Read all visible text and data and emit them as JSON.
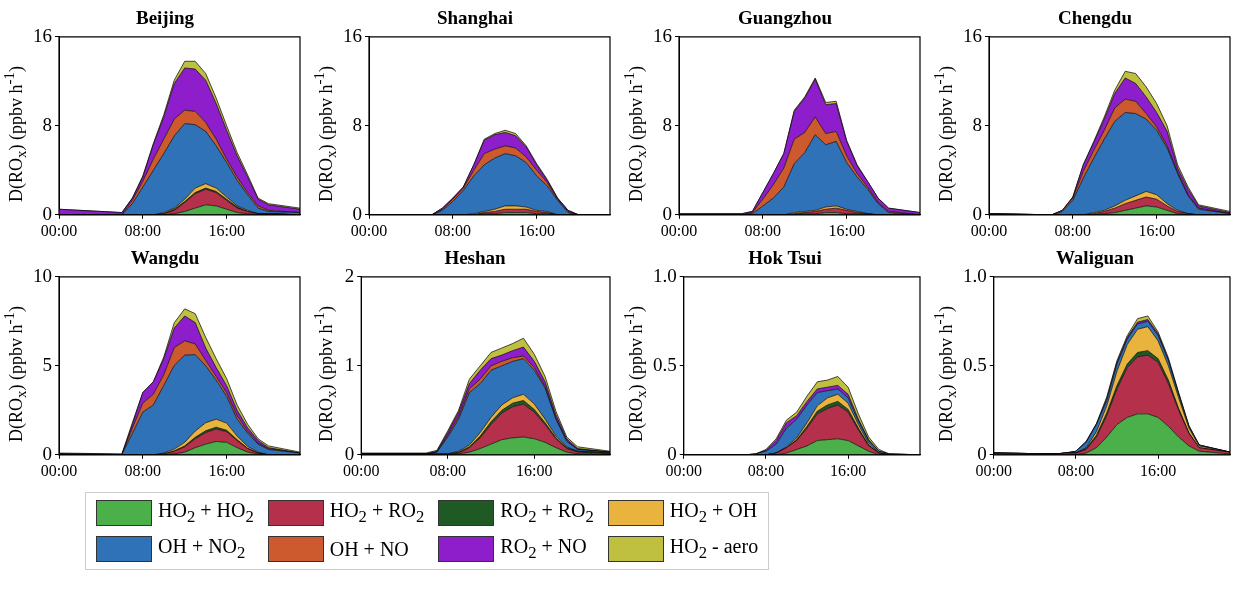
{
  "chart_data": [
    {
      "type": "area",
      "title": "Beijing",
      "ylabel": "D(RO$_{x}$) (ppbv h$^{-1}$)",
      "stacked": true,
      "legend": "bottom",
      "x": [
        0,
        6,
        7,
        8,
        9,
        10,
        11,
        12,
        13,
        14,
        15,
        16,
        17,
        18,
        19,
        20,
        23
      ],
      "xlim": [
        0,
        23
      ],
      "xticks": [
        {
          "value": 0,
          "label": "00:00"
        },
        {
          "value": 8,
          "label": "08:00"
        },
        {
          "value": 16,
          "label": "16:00"
        }
      ],
      "ylim": [
        0,
        16
      ],
      "yticks": [
        0,
        8,
        16
      ],
      "series": [
        {
          "name": "HO$_{2}$ + HO$_{2}$",
          "color": "#4cb04a",
          "values": [
            0,
            0,
            0,
            0,
            0,
            0,
            0.1,
            0.3,
            0.6,
            0.9,
            0.8,
            0.5,
            0.2,
            0.1,
            0,
            0,
            0
          ]
        },
        {
          "name": "HO$_{2}$ + RO$_{2}$",
          "color": "#b5304a",
          "values": [
            0,
            0,
            0,
            0,
            0,
            0.1,
            0.3,
            0.8,
            1.3,
            1.4,
            1.2,
            0.8,
            0.4,
            0.2,
            0.1,
            0.1,
            0
          ]
        },
        {
          "name": "RO$_{2}$ + RO$_{2}$",
          "color": "#1f5a25",
          "values": [
            0,
            0,
            0,
            0,
            0,
            0,
            0.1,
            0.1,
            0.1,
            0.1,
            0.1,
            0.1,
            0.1,
            0,
            0,
            0,
            0
          ]
        },
        {
          "name": "HO$_{2}$ + OH",
          "color": "#e8b43e",
          "values": [
            0,
            0,
            0,
            0,
            0,
            0.1,
            0.1,
            0.2,
            0.4,
            0.4,
            0.3,
            0.2,
            0.1,
            0.1,
            0,
            0,
            0
          ]
        },
        {
          "name": "OH + NO$_{2}$",
          "color": "#2f72b8",
          "values": [
            0,
            0,
            1,
            2.5,
            4,
            5.3,
            6.5,
            6.8,
            5.7,
            4.7,
            3.8,
            3.1,
            2.3,
            1.4,
            0.5,
            0.2,
            0.2
          ]
        },
        {
          "name": "OH + NO",
          "color": "#cc5a2e",
          "values": [
            0,
            0,
            0.3,
            0.5,
            1,
            1.3,
            1.5,
            1.2,
            1.2,
            0.8,
            0.6,
            0.3,
            0.3,
            0.2,
            0.2,
            0.1,
            0
          ]
        },
        {
          "name": "RO$_{2}$ + NO",
          "color": "#8e1ecc",
          "values": [
            0.5,
            0.2,
            0.2,
            0.4,
            1.3,
            2,
            3.2,
            3.8,
            3.8,
            3.8,
            3.2,
            2.6,
            1.9,
            1.4,
            0.6,
            0.5,
            0.3
          ]
        },
        {
          "name": "HO$_{2}$ - aero",
          "color": "#c0c040",
          "values": [
            0,
            0,
            0,
            0.1,
            0.1,
            0.2,
            0.3,
            0.6,
            0.7,
            0.6,
            0.5,
            0.4,
            0.3,
            0.2,
            0.1,
            0.1,
            0.1
          ]
        }
      ]
    },
    {
      "type": "area",
      "title": "Shanghai",
      "ylabel": "D(RO$_{x}$) (ppbv h$^{-1}$)",
      "stacked": true,
      "x": [
        0,
        6,
        7,
        8,
        9,
        10,
        11,
        12,
        13,
        14,
        15,
        16,
        17,
        18,
        19,
        20,
        23
      ],
      "xlim": [
        0,
        23
      ],
      "xticks": [
        {
          "value": 0,
          "label": "00:00"
        },
        {
          "value": 8,
          "label": "08:00"
        },
        {
          "value": 16,
          "label": "16:00"
        }
      ],
      "ylim": [
        0,
        16
      ],
      "yticks": [
        0,
        8,
        16
      ],
      "series": [
        {
          "color": "#4cb04a",
          "values": [
            0,
            0,
            0,
            0,
            0,
            0,
            0.1,
            0.1,
            0.2,
            0.2,
            0.2,
            0.1,
            0.1,
            0,
            0,
            0,
            0
          ]
        },
        {
          "color": "#b5304a",
          "values": [
            0,
            0,
            0,
            0,
            0,
            0,
            0.1,
            0.2,
            0.3,
            0.3,
            0.3,
            0.2,
            0.1,
            0,
            0,
            0,
            0
          ]
        },
        {
          "color": "#e8b43e",
          "values": [
            0,
            0,
            0,
            0,
            0,
            0.1,
            0.1,
            0.2,
            0.3,
            0.3,
            0.2,
            0.1,
            0.1,
            0,
            0,
            0,
            0
          ]
        },
        {
          "color": "#2f72b8",
          "values": [
            0,
            0,
            0.4,
            1.2,
            2.2,
            3.4,
            4.2,
            4.6,
            4.7,
            4.5,
            4,
            3.1,
            2.3,
            1.3,
            0.2,
            0,
            0
          ]
        },
        {
          "color": "#cc5a2e",
          "values": [
            0,
            0,
            0.1,
            0.2,
            0.2,
            0.5,
            1,
            0.8,
            0.7,
            0.7,
            0.5,
            0.5,
            0.3,
            0.1,
            0.1,
            0,
            0
          ]
        },
        {
          "color": "#8e1ecc",
          "values": [
            0,
            0,
            0.1,
            0.1,
            0.1,
            0.5,
            1.2,
            1.3,
            1.2,
            1.1,
            0.9,
            0.5,
            0.2,
            0.1,
            0.1,
            0,
            0
          ]
        },
        {
          "color": "#c0c040",
          "values": [
            0,
            0,
            0,
            0,
            0,
            0,
            0.1,
            0.1,
            0.2,
            0.2,
            0.1,
            0.1,
            0.1,
            0,
            0,
            0,
            0
          ]
        }
      ]
    },
    {
      "type": "area",
      "title": "Guangzhou",
      "ylabel": "D(RO$_{x}$) (ppbv h$^{-1}$)",
      "stacked": true,
      "x": [
        0,
        6,
        7,
        8,
        9,
        10,
        11,
        12,
        13,
        14,
        15,
        16,
        17,
        18,
        19,
        20,
        23
      ],
      "xlim": [
        0,
        23
      ],
      "xticks": [
        {
          "value": 0,
          "label": "00:00"
        },
        {
          "value": 8,
          "label": "08:00"
        },
        {
          "value": 16,
          "label": "16:00"
        }
      ],
      "ylim": [
        0,
        16
      ],
      "yticks": [
        0,
        8,
        16
      ],
      "series": [
        {
          "color": "#4cb04a",
          "values": [
            0,
            0,
            0,
            0,
            0,
            0,
            0,
            0.1,
            0.1,
            0.2,
            0.2,
            0.1,
            0.1,
            0,
            0,
            0,
            0
          ]
        },
        {
          "color": "#b5304a",
          "values": [
            0,
            0,
            0,
            0,
            0,
            0,
            0.1,
            0.1,
            0.2,
            0.3,
            0.4,
            0.3,
            0.1,
            0.1,
            0,
            0,
            0
          ]
        },
        {
          "color": "#e8b43e",
          "values": [
            0,
            0,
            0,
            0,
            0,
            0,
            0.1,
            0.1,
            0.1,
            0.2,
            0.2,
            0.1,
            0.1,
            0,
            0,
            0,
            0
          ]
        },
        {
          "color": "#2f72b8",
          "values": [
            0,
            0,
            0.1,
            0.8,
            1.5,
            2.5,
            4.4,
            5.3,
            6.8,
            5.6,
            5.8,
            4.2,
            3.1,
            2.2,
            1,
            0.2,
            0
          ]
        },
        {
          "color": "#cc5a2e",
          "values": [
            0,
            0,
            0.1,
            0.6,
            1.2,
            1.7,
            2.2,
            1.8,
            1.6,
            1,
            0.9,
            0.6,
            0.3,
            0.2,
            0.1,
            0.1,
            0
          ]
        },
        {
          "color": "#8e1ecc",
          "values": [
            0.1,
            0.1,
            0.1,
            0.6,
            1,
            1.3,
            2.5,
            3.1,
            3.4,
            2.6,
            2.5,
            1.3,
            0.7,
            0.5,
            0.4,
            0.3,
            0.2
          ]
        },
        {
          "color": "#c0c040",
          "values": [
            0,
            0,
            0,
            0,
            0,
            0,
            0.1,
            0.1,
            0.1,
            0.2,
            0.2,
            0.1,
            0.1,
            0,
            0,
            0,
            0
          ]
        }
      ]
    },
    {
      "type": "area",
      "title": "Chengdu",
      "ylabel": "D(RO$_{x}$) (ppbv h$^{-1}$)",
      "stacked": true,
      "x": [
        0,
        6,
        7,
        8,
        9,
        10,
        11,
        12,
        13,
        14,
        15,
        16,
        17,
        18,
        19,
        20,
        23
      ],
      "xlim": [
        0,
        23
      ],
      "xticks": [
        {
          "value": 0,
          "label": "00:00"
        },
        {
          "value": 8,
          "label": "08:00"
        },
        {
          "value": 16,
          "label": "16:00"
        }
      ],
      "ylim": [
        0,
        16
      ],
      "yticks": [
        0,
        8,
        16
      ],
      "series": [
        {
          "color": "#4cb04a",
          "values": [
            0,
            0,
            0,
            0,
            0,
            0,
            0.1,
            0.2,
            0.4,
            0.6,
            0.8,
            0.7,
            0.4,
            0.1,
            0,
            0,
            0
          ]
        },
        {
          "color": "#b5304a",
          "values": [
            0,
            0,
            0,
            0,
            0,
            0.1,
            0.2,
            0.4,
            0.6,
            0.7,
            0.8,
            0.7,
            0.4,
            0.2,
            0.1,
            0,
            0
          ]
        },
        {
          "color": "#e8b43e",
          "values": [
            0,
            0,
            0,
            0,
            0,
            0.1,
            0.1,
            0.2,
            0.3,
            0.4,
            0.5,
            0.4,
            0.2,
            0.1,
            0,
            0,
            0
          ]
        },
        {
          "color": "#2f72b8",
          "values": [
            0.1,
            0,
            0.3,
            1.3,
            3.3,
            4.9,
            6.4,
            7.6,
            7.9,
            7.4,
            6.5,
            5.8,
            5,
            3.3,
            1.6,
            0.5,
            0.1
          ]
        },
        {
          "color": "#cc5a2e",
          "values": [
            0,
            0,
            0.1,
            0.2,
            0.6,
            0.7,
            0.8,
            1.2,
            1.2,
            1.1,
            0.5,
            0.3,
            0.2,
            0.1,
            0.1,
            0.1,
            0
          ]
        },
        {
          "color": "#8e1ecc",
          "values": [
            0,
            0,
            0,
            0.1,
            0.6,
            0.7,
            1,
            1.3,
            1.9,
            1.6,
            1.5,
            1.3,
            1.3,
            0.4,
            0.5,
            0.2,
            0.1
          ]
        },
        {
          "color": "#c0c040",
          "values": [
            0,
            0,
            0,
            0,
            0,
            0.1,
            0.2,
            0.3,
            0.6,
            0.9,
            0.9,
            0.8,
            0.5,
            0.3,
            0.2,
            0.1,
            0.1
          ]
        }
      ]
    },
    {
      "type": "area",
      "title": "Wangdu",
      "ylabel": "D(RO$_{x}$) (ppbv h$^{-1}$)",
      "stacked": true,
      "x": [
        0,
        6,
        7,
        8,
        9,
        10,
        11,
        12,
        13,
        14,
        15,
        16,
        17,
        18,
        19,
        20,
        23
      ],
      "xlim": [
        0,
        23
      ],
      "xticks": [
        {
          "value": 0,
          "label": "00:00"
        },
        {
          "value": 8,
          "label": "08:00"
        },
        {
          "value": 16,
          "label": "16:00"
        }
      ],
      "ylim": [
        0,
        10
      ],
      "yticks": [
        0,
        5,
        10
      ],
      "series": [
        {
          "color": "#4cb04a",
          "values": [
            0,
            0,
            0,
            0,
            0,
            0,
            0.05,
            0.15,
            0.4,
            0.6,
            0.75,
            0.7,
            0.4,
            0.15,
            0.05,
            0,
            0
          ]
        },
        {
          "color": "#b5304a",
          "values": [
            0,
            0,
            0,
            0,
            0,
            0.05,
            0.15,
            0.3,
            0.5,
            0.65,
            0.7,
            0.6,
            0.4,
            0.2,
            0.05,
            0,
            0
          ]
        },
        {
          "color": "#1f5a25",
          "values": [
            0,
            0,
            0,
            0,
            0,
            0,
            0.02,
            0.05,
            0.08,
            0.1,
            0.1,
            0.08,
            0.05,
            0.02,
            0,
            0,
            0
          ]
        },
        {
          "color": "#e8b43e",
          "values": [
            0,
            0,
            0,
            0,
            0,
            0.05,
            0.1,
            0.2,
            0.35,
            0.45,
            0.45,
            0.4,
            0.2,
            0.1,
            0.05,
            0,
            0
          ]
        },
        {
          "color": "#2f72b8",
          "values": [
            0.05,
            0.02,
            1.2,
            2.4,
            2.8,
            3.8,
            4.7,
            4.9,
            4.3,
            3.2,
            2.2,
            1.5,
            0.95,
            0.75,
            0.45,
            0.3,
            0.1
          ]
        },
        {
          "color": "#cc5a2e",
          "values": [
            0,
            0,
            0.3,
            0.5,
            0.6,
            0.6,
            1,
            0.8,
            0.6,
            0.3,
            0.2,
            0.2,
            0.2,
            0.1,
            0.05,
            0.05,
            0
          ]
        },
        {
          "color": "#8e1ecc",
          "values": [
            0,
            0,
            0.2,
            0.6,
            0.7,
            0.9,
            1.1,
            1.4,
            1.2,
            0.7,
            0.5,
            0.4,
            0.3,
            0.2,
            0.15,
            0.05,
            0
          ]
        },
        {
          "color": "#c0c040",
          "values": [
            0.05,
            0.03,
            0.1,
            0,
            0,
            0.1,
            0.3,
            0.4,
            0.5,
            0.6,
            0.5,
            0.4,
            0.3,
            0.2,
            0.1,
            0.1,
            0.05
          ]
        }
      ]
    },
    {
      "type": "area",
      "title": "Heshan",
      "ylabel": "D(RO$_{x}$) (ppbv h$^{-1}$)",
      "stacked": true,
      "x": [
        0,
        6,
        7,
        8,
        9,
        10,
        11,
        12,
        13,
        14,
        15,
        16,
        17,
        18,
        19,
        20,
        23
      ],
      "xlim": [
        0,
        23
      ],
      "xticks": [
        {
          "value": 0,
          "label": "00:00"
        },
        {
          "value": 8,
          "label": "08:00"
        },
        {
          "value": 16,
          "label": "16:00"
        }
      ],
      "ylim": [
        0,
        2
      ],
      "yticks": [
        0,
        1,
        2
      ],
      "series": [
        {
          "color": "#4cb04a",
          "values": [
            0,
            0,
            0,
            0,
            0.01,
            0.03,
            0.07,
            0.12,
            0.17,
            0.19,
            0.2,
            0.18,
            0.14,
            0.08,
            0.03,
            0.01,
            0
          ]
        },
        {
          "color": "#b5304a",
          "values": [
            0,
            0,
            0,
            0,
            0.01,
            0.05,
            0.12,
            0.22,
            0.3,
            0.35,
            0.37,
            0.3,
            0.2,
            0.1,
            0.04,
            0.02,
            0.01
          ]
        },
        {
          "color": "#1f5a25",
          "values": [
            0.01,
            0.01,
            0.01,
            0.01,
            0.01,
            0.01,
            0.02,
            0.03,
            0.03,
            0.04,
            0.04,
            0.03,
            0.02,
            0.01,
            0.01,
            0.01,
            0.01
          ]
        },
        {
          "color": "#e8b43e",
          "values": [
            0,
            0,
            0,
            0,
            0.01,
            0.02,
            0.04,
            0.05,
            0.06,
            0.06,
            0.07,
            0.06,
            0.04,
            0.02,
            0.01,
            0,
            0
          ]
        },
        {
          "color": "#2f72b8",
          "values": [
            0,
            0,
            0.02,
            0.19,
            0.36,
            0.59,
            0.55,
            0.53,
            0.44,
            0.41,
            0.4,
            0.38,
            0.35,
            0.19,
            0.06,
            0.02,
            0.01
          ]
        },
        {
          "color": "#cc5a2e",
          "values": [
            0,
            0,
            0,
            0.02,
            0.03,
            0.04,
            0.05,
            0.05,
            0.05,
            0.04,
            0.03,
            0.03,
            0.02,
            0.01,
            0.01,
            0,
            0
          ]
        },
        {
          "color": "#8e1ecc",
          "values": [
            0,
            0,
            0.01,
            0.03,
            0.05,
            0.06,
            0.1,
            0.08,
            0.07,
            0.08,
            0.1,
            0.07,
            0.05,
            0.04,
            0.02,
            0.01,
            0
          ]
        },
        {
          "color": "#c0c040",
          "values": [
            0.01,
            0.01,
            0.01,
            0.02,
            0.02,
            0.05,
            0.05,
            0.07,
            0.08,
            0.08,
            0.1,
            0.08,
            0.06,
            0.04,
            0.02,
            0.02,
            0.01
          ]
        }
      ]
    },
    {
      "type": "area",
      "title": "Hok Tsui",
      "ylabel": "D(RO$_{x}$) (ppbv h$^{-1}$)",
      "stacked": true,
      "x": [
        0,
        6,
        7,
        8,
        9,
        10,
        11,
        12,
        13,
        14,
        15,
        16,
        17,
        18,
        19,
        20,
        23
      ],
      "xlim": [
        0,
        23
      ],
      "xticks": [
        {
          "value": 0,
          "label": "00:00"
        },
        {
          "value": 8,
          "label": "08:00"
        },
        {
          "value": 16,
          "label": "16:00"
        }
      ],
      "ylim": [
        0,
        1
      ],
      "yticks": [
        0,
        0.5,
        {
          "value": 1,
          "label": "1.0"
        }
      ],
      "series": [
        {
          "color": "#4cb04a",
          "values": [
            0,
            0,
            0,
            0,
            0,
            0.01,
            0.03,
            0.05,
            0.08,
            0.085,
            0.09,
            0.08,
            0.05,
            0.02,
            0,
            0,
            0
          ]
        },
        {
          "color": "#b5304a",
          "values": [
            0,
            0,
            0,
            0,
            0.01,
            0.03,
            0.05,
            0.1,
            0.15,
            0.175,
            0.19,
            0.16,
            0.09,
            0.03,
            0.01,
            0,
            0
          ]
        },
        {
          "color": "#1f5a25",
          "values": [
            0,
            0,
            0,
            0,
            0,
            0,
            0.005,
            0.01,
            0.015,
            0.02,
            0.02,
            0.015,
            0.01,
            0.005,
            0,
            0,
            0
          ]
        },
        {
          "color": "#e8b43e",
          "values": [
            0,
            0,
            0,
            0,
            0,
            0.005,
            0.01,
            0.02,
            0.03,
            0.04,
            0.04,
            0.035,
            0.02,
            0.01,
            0,
            0,
            0
          ]
        },
        {
          "color": "#2f72b8",
          "values": [
            0,
            0,
            0.005,
            0.02,
            0.05,
            0.105,
            0.105,
            0.1,
            0.075,
            0.04,
            0.03,
            0.03,
            0.02,
            0.015,
            0.01,
            0.005,
            0
          ]
        },
        {
          "color": "#8e1ecc",
          "values": [
            0,
            0,
            0,
            0.005,
            0.02,
            0.03,
            0.02,
            0.02,
            0.02,
            0.02,
            0.02,
            0.02,
            0.01,
            0.005,
            0,
            0,
            0
          ]
        },
        {
          "color": "#c0c040",
          "values": [
            0,
            0,
            0,
            0.005,
            0.01,
            0.015,
            0.02,
            0.03,
            0.04,
            0.04,
            0.05,
            0.04,
            0.03,
            0.015,
            0.01,
            0,
            0
          ]
        }
      ]
    },
    {
      "type": "area",
      "title": "Waliguan",
      "ylabel": "D(RO$_{x}$) (ppbv h$^{-1}$)",
      "stacked": true,
      "x": [
        0,
        6,
        7,
        8,
        9,
        10,
        11,
        12,
        13,
        14,
        15,
        16,
        17,
        18,
        19,
        20,
        23
      ],
      "xlim": [
        0,
        23
      ],
      "xticks": [
        {
          "value": 0,
          "label": "00:00"
        },
        {
          "value": 8,
          "label": "08:00"
        },
        {
          "value": 16,
          "label": "16:00"
        }
      ],
      "ylim": [
        0,
        1
      ],
      "yticks": [
        0,
        0.5,
        {
          "value": 1,
          "label": "1.0"
        }
      ],
      "series": [
        {
          "color": "#4cb04a",
          "values": [
            0.005,
            0,
            0,
            0,
            0.01,
            0.04,
            0.1,
            0.17,
            0.21,
            0.23,
            0.23,
            0.21,
            0.16,
            0.1,
            0.05,
            0.02,
            0.005
          ]
        },
        {
          "color": "#b5304a",
          "values": [
            0.005,
            0.005,
            0.01,
            0.01,
            0.02,
            0.06,
            0.12,
            0.2,
            0.28,
            0.32,
            0.33,
            0.31,
            0.24,
            0.15,
            0.07,
            0.02,
            0.01
          ]
        },
        {
          "color": "#1f5a25",
          "values": [
            0,
            0,
            0,
            0,
            0.005,
            0.01,
            0.015,
            0.02,
            0.02,
            0.025,
            0.025,
            0.02,
            0.02,
            0.01,
            0.005,
            0,
            0
          ]
        },
        {
          "color": "#e8b43e",
          "values": [
            0,
            0,
            0,
            0,
            0.005,
            0.02,
            0.04,
            0.08,
            0.11,
            0.13,
            0.135,
            0.1,
            0.08,
            0.06,
            0.025,
            0.01,
            0
          ]
        },
        {
          "color": "#2f72b8",
          "values": [
            0,
            0,
            0,
            0.01,
            0.03,
            0.04,
            0.03,
            0.04,
            0.03,
            0.03,
            0.03,
            0.03,
            0.03,
            0.02,
            0.01,
            0.005,
            0
          ]
        },
        {
          "color": "#8e1ecc",
          "values": [
            0,
            0,
            0,
            0,
            0.005,
            0.005,
            0.01,
            0.01,
            0.01,
            0.01,
            0.01,
            0.01,
            0.005,
            0.005,
            0,
            0,
            0
          ]
        },
        {
          "color": "#c0c040",
          "values": [
            0,
            0,
            0,
            0,
            0,
            0,
            0.01,
            0.01,
            0.01,
            0.02,
            0.02,
            0.01,
            0.01,
            0.005,
            0.005,
            0,
            0
          ]
        }
      ]
    }
  ]
}
